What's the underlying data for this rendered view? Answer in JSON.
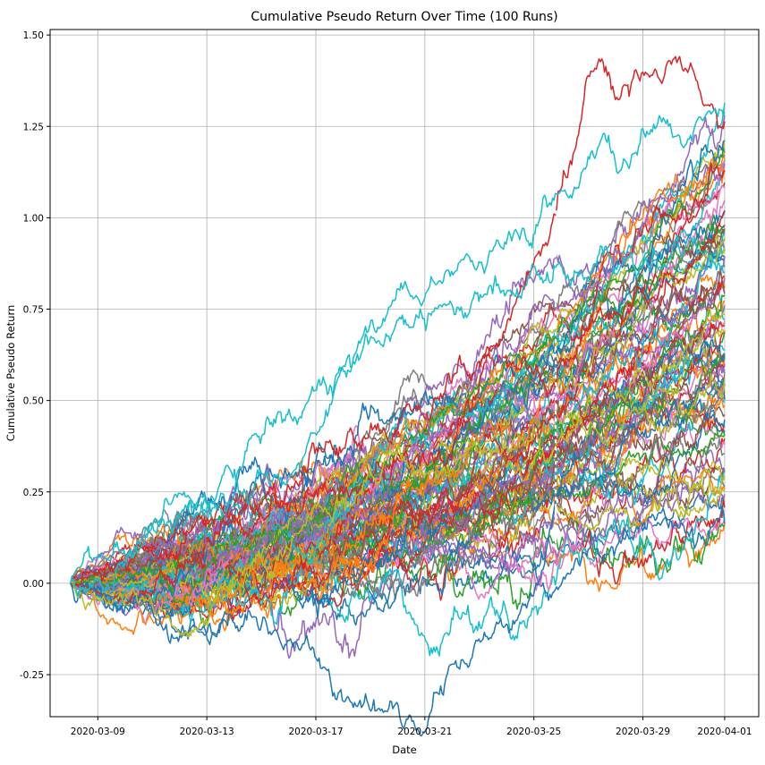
{
  "chart_data": {
    "type": "line",
    "title": "Cumulative Pseudo Return Over Time (100 Runs)",
    "xlabel": "Date",
    "ylabel": "Cumulative Pseudo Return",
    "series_count": 100,
    "x_range": [
      "2020-03-08",
      "2020-04-01"
    ],
    "xlim": [
      "2020-03-07 06:00",
      "2020-04-02 06:00"
    ],
    "ylim": [
      -0.365,
      1.515
    ],
    "grid": true,
    "x_ticks": [
      "2020-03-09",
      "2020-03-13",
      "2020-03-17",
      "2020-03-21",
      "2020-03-25",
      "2020-03-29",
      "2020-04-01"
    ],
    "y_ticks": [
      "-0.25",
      "0.00",
      "0.25",
      "0.50",
      "0.75",
      "1.00",
      "1.25",
      "1.50"
    ],
    "y_tick_values": [
      -0.25,
      0.0,
      0.25,
      0.5,
      0.75,
      1.0,
      1.25,
      1.5
    ],
    "palette": [
      "#1f77b4",
      "#ff7f0e",
      "#2ca02c",
      "#d62728",
      "#9467bd",
      "#8c564b",
      "#e377c2",
      "#7f7f7f",
      "#bcbd22",
      "#17becf"
    ],
    "final_values_summary": {
      "min": 0.12,
      "max": 1.3,
      "median": 0.65
    },
    "highlighted_series": [
      {
        "color": "#d62728",
        "points": [
          [
            "2020-03-08",
            0.0
          ],
          [
            "2020-03-22",
            0.35
          ],
          [
            "2020-03-26",
            1.1
          ],
          [
            "2020-03-27",
            1.42
          ],
          [
            "2020-03-28",
            1.33
          ],
          [
            "2020-03-30",
            1.4
          ],
          [
            "2020-04-01",
            1.3
          ]
        ]
      },
      {
        "color": "#17becf",
        "points": [
          [
            "2020-03-08",
            0.0
          ],
          [
            "2020-03-18",
            0.55
          ],
          [
            "2020-03-22",
            0.9
          ],
          [
            "2020-03-25",
            1.0
          ],
          [
            "2020-03-28",
            1.22
          ],
          [
            "2020-04-01",
            1.27
          ]
        ]
      },
      {
        "color": "#1f77b4",
        "points": [
          [
            "2020-03-08",
            0.0
          ],
          [
            "2020-03-17",
            -0.2
          ],
          [
            "2020-03-21",
            -0.36
          ],
          [
            "2020-03-23",
            -0.2
          ],
          [
            "2020-03-25",
            -0.03
          ],
          [
            "2020-03-26",
            0.25
          ],
          [
            "2020-04-01",
            0.55
          ]
        ]
      },
      {
        "color": "#bcbd22",
        "points": [
          [
            "2020-03-08",
            0.0
          ],
          [
            "2020-03-10",
            -0.08
          ],
          [
            "2020-03-13",
            -0.09
          ],
          [
            "2020-03-18",
            0.25
          ],
          [
            "2020-04-01",
            0.55
          ]
        ]
      },
      {
        "color": "#17becf",
        "points": [
          [
            "2020-03-08",
            0.0
          ],
          [
            "2020-03-16",
            0.3
          ],
          [
            "2020-03-18",
            0.62
          ],
          [
            "2020-03-21",
            0.75
          ],
          [
            "2020-04-01",
            0.9
          ]
        ]
      }
    ]
  }
}
